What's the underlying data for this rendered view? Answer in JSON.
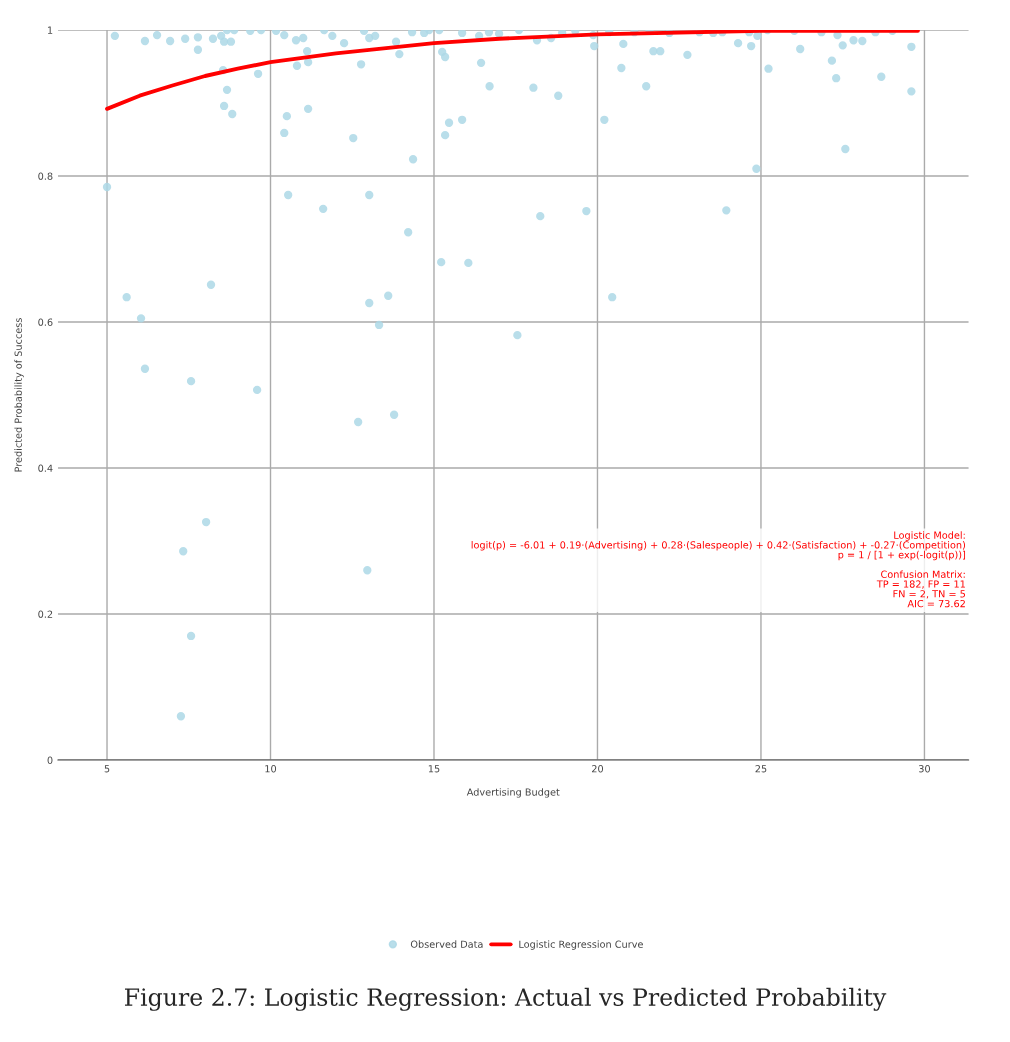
{
  "chart_data": {
    "type": "scatter",
    "title": "Figure 2.7: Logistic Regression: Actual vs Predicted Probability",
    "xlabel": "Advertising Budget",
    "ylabel": "Predicted Probability of Success",
    "xlim": [
      3.5,
      31.35
    ],
    "ylim": [
      0,
      1
    ],
    "xticks": [
      5,
      10,
      15,
      20,
      25,
      30
    ],
    "yticks": [
      {
        "value": 0,
        "label": "0"
      },
      {
        "value": 0.2,
        "label": "0.2"
      },
      {
        "value": 0.4,
        "label": "0.4"
      },
      {
        "value": 0.6,
        "label": "0.6"
      },
      {
        "value": 0.8,
        "label": "0.8"
      },
      {
        "value": 1,
        "label": "1"
      }
    ],
    "grid": true,
    "legend": "bottom",
    "marker": "circle",
    "series": [
      {
        "name": "Observed Data",
        "color": "#add8e6",
        "x": [
          5.0,
          5.6,
          6.04,
          6.16,
          7.57,
          8.18,
          9.59,
          8.03,
          7.33,
          7.57,
          7.26,
          12.96,
          12.68,
          13.78,
          13.02,
          13.32,
          13.6,
          13.02,
          10.54,
          11.61,
          12.53,
          14.21,
          14.36,
          15.22,
          16.05,
          15.34,
          15.46,
          15.86,
          17.55,
          18.25,
          19.66,
          18.04,
          18.8,
          20.21,
          16.7,
          20.45,
          21.49,
          20.73,
          23.94,
          24.86,
          25.23,
          27.58,
          28.68,
          29.6,
          27.3,
          27.17,
          29.6,
          22.75,
          9.62,
          10.5,
          10.42,
          11.15,
          8.58,
          8.67,
          8.83,
          8.55,
          10.81,
          11.15,
          11.12,
          12.77,
          13.94,
          15.25,
          15.34,
          16.44,
          19.9,
          21.71,
          21.92,
          24.3,
          24.7,
          26.2,
          28.1,
          27.5,
          5.24,
          6.16,
          6.53,
          6.93,
          7.39,
          7.78,
          7.78,
          8.24,
          8.49,
          8.58,
          8.79,
          8.67,
          8.89,
          9.38,
          9.71,
          10.17,
          10.42,
          10.78,
          11.0,
          11.64,
          11.89,
          12.25,
          12.86,
          13.02,
          13.2,
          13.84,
          14.33,
          14.85,
          14.7,
          15.16,
          15.86,
          16.38,
          16.68,
          16.99,
          17.6,
          18.15,
          18.58,
          18.92,
          19.32,
          19.87,
          20.36,
          20.79,
          21.13,
          21.59,
          22.2,
          23.12,
          23.54,
          23.82,
          24.64,
          25.2,
          24.89,
          26.02,
          26.85,
          27.34,
          27.83,
          28.5,
          29.02
        ],
        "values": [
          0.785,
          0.634,
          0.605,
          0.536,
          0.519,
          0.651,
          0.507,
          0.326,
          0.286,
          0.17,
          0.06,
          0.26,
          0.463,
          0.473,
          0.626,
          0.596,
          0.636,
          0.774,
          0.774,
          0.755,
          0.852,
          0.723,
          0.823,
          0.682,
          0.681,
          0.856,
          0.873,
          0.877,
          0.582,
          0.745,
          0.752,
          0.921,
          0.91,
          0.877,
          0.923,
          0.634,
          0.923,
          0.948,
          0.753,
          0.81,
          0.947,
          0.837,
          0.936,
          0.916,
          0.934,
          0.958,
          0.977,
          0.966,
          0.94,
          0.882,
          0.859,
          0.892,
          0.896,
          0.918,
          0.885,
          0.945,
          0.951,
          0.956,
          0.971,
          0.953,
          0.967,
          0.97,
          0.963,
          0.955,
          0.978,
          0.971,
          0.971,
          0.982,
          0.978,
          0.974,
          0.985,
          0.979,
          0.992,
          0.985,
          0.993,
          0.985,
          0.988,
          0.99,
          0.973,
          0.988,
          0.992,
          0.984,
          0.984,
          1.0,
          1.0,
          0.999,
          1.0,
          0.999,
          0.993,
          0.986,
          0.989,
          1.0,
          0.992,
          0.982,
          0.999,
          0.989,
          0.992,
          0.984,
          0.997,
          1.0,
          0.996,
          1.0,
          0.996,
          0.992,
          0.997,
          0.995,
          1.0,
          0.986,
          0.989,
          0.996,
          0.999,
          0.993,
          0.997,
          0.981,
          0.997,
          0.999,
          0.996,
          0.997,
          0.996,
          0.997,
          0.997,
          1.0,
          0.992,
          0.999,
          0.997,
          0.993,
          0.986,
          0.997,
          0.999
        ]
      },
      {
        "name": "Logistic Regression Curve",
        "type": "line",
        "color": "#ff0000",
        "marker": "none",
        "line_style": "solid",
        "x": [
          5,
          6,
          7,
          8,
          9,
          10,
          12,
          15,
          17,
          20,
          25,
          29.8
        ],
        "values": [
          0.892,
          0.91,
          0.924,
          0.937,
          0.947,
          0.956,
          0.968,
          0.982,
          0.988,
          0.994,
          0.999,
          0.999
        ]
      }
    ],
    "annotations": [
      "Logistic Model:\nlogit(p) = -6.01 + 0.19·(Advertising) + 0.28·(Salespeople) + 0.42·(Satisfaction) + -0.27·(Competition)\np = 1 / [1 + exp(-logit(p))]\n\nConfusion Matrix:\nTP = 182, FP = 11\nFN = 2, TN = 5\nAIC = 73.62"
    ]
  }
}
